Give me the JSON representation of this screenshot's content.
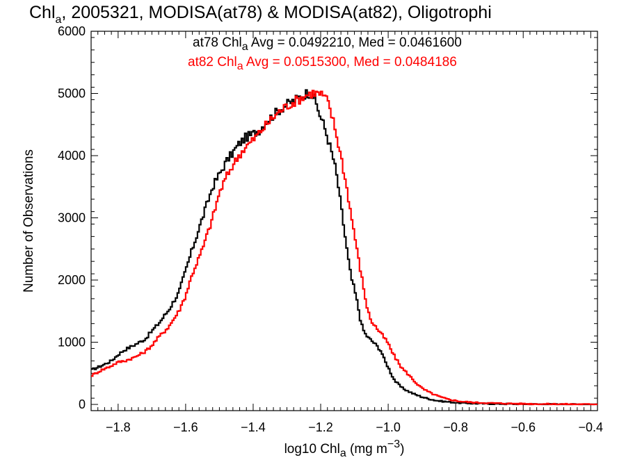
{
  "chart_data": {
    "type": "line",
    "title": {
      "pre": "Chl",
      "sub": "a",
      "post": ", 2005321, MODISA(at78) & MODISA(at82), Oligotrophi"
    },
    "xlabel": {
      "pre": "log10 Chl",
      "sub": "a",
      "post": " (mg m",
      "sup": "−3",
      "end": ")"
    },
    "ylabel": "Number of Observations",
    "xlim": [
      -1.88,
      -0.38
    ],
    "ylim": [
      -100,
      6000
    ],
    "x_ticks": [
      -1.8,
      -1.6,
      -1.4,
      -1.2,
      -1.0,
      -0.8,
      -0.6,
      -0.4
    ],
    "x_tick_labels": [
      "−1.8",
      "−1.6",
      "−1.4",
      "−1.2",
      "−1.0",
      "−0.8",
      "−0.6",
      "−0.4"
    ],
    "y_ticks": [
      0,
      1000,
      2000,
      3000,
      4000,
      5000,
      6000
    ],
    "y_tick_labels": [
      "0",
      "1000",
      "2000",
      "3000",
      "4000",
      "5000",
      "6000"
    ],
    "grid": false,
    "annotations": [
      {
        "pre": "at78 Chl",
        "sub": "a",
        "post": " Avg = 0.0492210, Med = 0.0461600",
        "color": "#000000"
      },
      {
        "pre": "at82 Chl",
        "sub": "a",
        "post": " Avg = 0.0515300, Med = 0.0484186",
        "color": "#ff0000"
      }
    ],
    "series": [
      {
        "color": "#000000",
        "x": [
          -1.88,
          -1.85,
          -1.82,
          -1.8,
          -1.78,
          -1.75,
          -1.72,
          -1.7,
          -1.68,
          -1.65,
          -1.62,
          -1.6,
          -1.58,
          -1.55,
          -1.52,
          -1.5,
          -1.48,
          -1.46,
          -1.44,
          -1.42,
          -1.41,
          -1.4,
          -1.38,
          -1.36,
          -1.34,
          -1.32,
          -1.3,
          -1.28,
          -1.26,
          -1.25,
          -1.24,
          -1.23,
          -1.22,
          -1.21,
          -1.2,
          -1.19,
          -1.18,
          -1.17,
          -1.16,
          -1.15,
          -1.14,
          -1.13,
          -1.12,
          -1.11,
          -1.1,
          -1.09,
          -1.08,
          -1.07,
          -1.06,
          -1.05,
          -1.04,
          -1.03,
          -1.02,
          -1.01,
          -1.0,
          -0.99,
          -0.98,
          -0.96,
          -0.94,
          -0.92,
          -0.9,
          -0.88,
          -0.86,
          -0.84,
          -0.82,
          -0.8,
          -0.78,
          -0.75,
          -0.7,
          -0.65,
          -0.6,
          -0.55,
          -0.5,
          -0.45,
          -0.4
        ],
        "y": [
          550,
          620,
          700,
          800,
          880,
          960,
          1050,
          1180,
          1300,
          1520,
          1800,
          2150,
          2500,
          3000,
          3500,
          3700,
          3900,
          4050,
          4200,
          4300,
          4320,
          4350,
          4420,
          4550,
          4650,
          4750,
          4820,
          4880,
          4950,
          4980,
          5010,
          5000,
          4950,
          4780,
          4620,
          4480,
          4300,
          4100,
          3900,
          3600,
          3200,
          2800,
          2400,
          2050,
          1850,
          1600,
          1300,
          1150,
          1080,
          1030,
          980,
          920,
          850,
          700,
          600,
          480,
          380,
          270,
          210,
          160,
          120,
          90,
          65,
          50,
          40,
          30,
          22,
          16,
          10,
          8,
          6,
          4,
          3,
          2,
          2
        ]
      },
      {
        "color": "#ff0000",
        "x": [
          -1.88,
          -1.85,
          -1.82,
          -1.8,
          -1.78,
          -1.75,
          -1.72,
          -1.7,
          -1.68,
          -1.65,
          -1.62,
          -1.6,
          -1.58,
          -1.55,
          -1.52,
          -1.5,
          -1.48,
          -1.46,
          -1.44,
          -1.42,
          -1.4,
          -1.38,
          -1.36,
          -1.34,
          -1.32,
          -1.3,
          -1.28,
          -1.26,
          -1.24,
          -1.23,
          -1.22,
          -1.21,
          -1.2,
          -1.19,
          -1.18,
          -1.17,
          -1.16,
          -1.15,
          -1.14,
          -1.13,
          -1.12,
          -1.11,
          -1.1,
          -1.09,
          -1.08,
          -1.07,
          -1.06,
          -1.05,
          -1.04,
          -1.03,
          -1.02,
          -1.01,
          -1.0,
          -0.99,
          -0.98,
          -0.96,
          -0.94,
          -0.92,
          -0.9,
          -0.88,
          -0.86,
          -0.84,
          -0.82,
          -0.8,
          -0.78,
          -0.75,
          -0.7,
          -0.65,
          -0.6,
          -0.55,
          -0.5,
          -0.45,
          -0.4
        ],
        "y": [
          460,
          550,
          620,
          680,
          700,
          760,
          850,
          950,
          1080,
          1250,
          1500,
          1750,
          2100,
          2500,
          3000,
          3400,
          3650,
          3850,
          4020,
          4150,
          4250,
          4380,
          4500,
          4620,
          4720,
          4800,
          4860,
          4920,
          4980,
          5000,
          5010,
          5000,
          4990,
          4950,
          4880,
          4700,
          4500,
          4250,
          4000,
          3700,
          3400,
          3050,
          2750,
          2400,
          2100,
          1780,
          1500,
          1340,
          1270,
          1200,
          1130,
          1060,
          980,
          860,
          760,
          590,
          480,
          360,
          260,
          200,
          150,
          110,
          80,
          60,
          45,
          32,
          22,
          15,
          10,
          7,
          5,
          3,
          2
        ]
      }
    ]
  }
}
